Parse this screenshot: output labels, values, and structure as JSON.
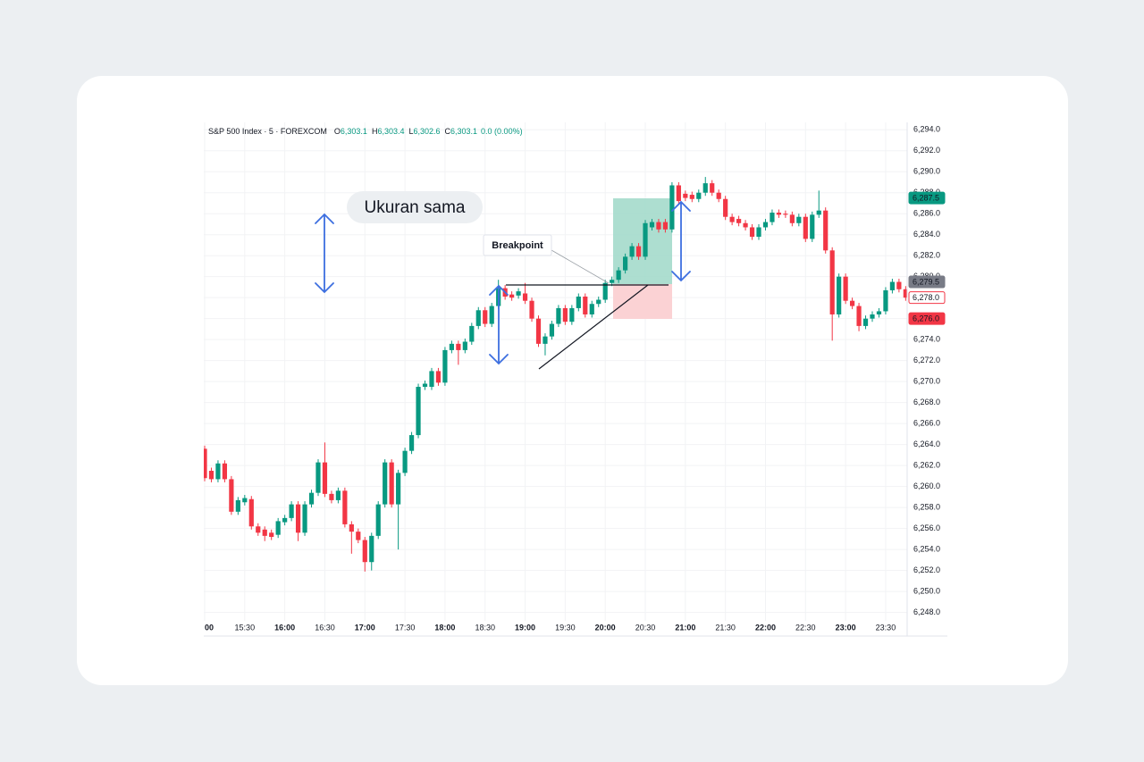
{
  "chart_data": {
    "type": "candlestick",
    "legend": {
      "symbol": "S&P 500 Index · 5 · FOREXCOM",
      "ohlc": [
        {
          "key": "O",
          "value": "6,303.1"
        },
        {
          "key": "H",
          "value": "6,303.4"
        },
        {
          "key": "L",
          "value": "6,302.6"
        },
        {
          "key": "C",
          "value": "6,303.1"
        }
      ],
      "change": "0.0 (0.00%)"
    },
    "annotations": [
      "Ukuran sama",
      "Breakpoint"
    ],
    "up_color": "#089981",
    "down_color": "#f23645",
    "categories": [
      "00",
      null,
      null,
      null,
      null,
      null,
      "15:30",
      null,
      null,
      null,
      null,
      null,
      "16:00",
      null,
      null,
      null,
      null,
      null,
      "16:30",
      null,
      null,
      null,
      null,
      null,
      "17:00",
      null,
      null,
      null,
      null,
      null,
      "17:30",
      null,
      null,
      null,
      null,
      null,
      "18:00",
      null,
      null,
      null,
      null,
      null,
      "18:30",
      null,
      null,
      null,
      null,
      null,
      "19:00",
      null,
      null,
      null,
      null,
      null,
      "19:30",
      null,
      null,
      null,
      null,
      null,
      "20:00",
      null,
      null,
      null,
      null,
      null,
      "20:30",
      null,
      null,
      null,
      null,
      null,
      "21:00",
      null,
      null,
      null,
      null,
      null,
      "21:30",
      null,
      null,
      null,
      null,
      null,
      "22:00",
      null,
      null,
      null,
      null,
      null,
      "22:30",
      null,
      null,
      null,
      null,
      null,
      "23:00",
      null,
      null,
      null,
      null,
      null,
      "23:30",
      null,
      null,
      null
    ],
    "open": [
      6263.6,
      6261.5,
      6260.7,
      6262.2,
      6260.7,
      6257.6,
      6258.5,
      6258.8,
      6256.2,
      6255.9,
      6255.6,
      6255.4,
      6256.6,
      6257.0,
      6258.3,
      6255.6,
      6258.3,
      6259.4,
      6262.3,
      6259.3,
      6258.7,
      6259.6,
      6256.4,
      6255.7,
      6254.9,
      6252.8,
      6255.3,
      6258.3,
      6262.3,
      6258.3,
      6261.3,
      6263.4,
      6264.9,
      6269.5,
      6269.5,
      6271.0,
      6269.9,
      6273.0,
      6273.6,
      6273.0,
      6273.8,
      6275.3,
      6276.8,
      6275.5,
      6277.2,
      6278.9,
      6278.3,
      6278.2,
      6278.4,
      6277.7,
      6276.0,
      6273.6,
      6274.3,
      6275.5,
      6277.0,
      6275.7,
      6277.0,
      6278.1,
      6276.4,
      6277.4,
      6277.8,
      6279.4,
      6279.7,
      6280.6,
      6281.9,
      6282.9,
      6281.9,
      6284.7,
      6285.2,
      6285.2,
      6284.5,
      6288.7,
      6287.9,
      6287.8,
      6287.4,
      6288.0,
      6288.9,
      6288.0,
      6287.4,
      6285.7,
      6285.5,
      6285.1,
      6284.7,
      6283.8,
      6284.7,
      6285.2,
      6286.1,
      6286.0,
      6285.9,
      6285.1,
      6285.7,
      6283.6,
      6285.9,
      6286.3,
      6282.5,
      6276.4,
      6280.0,
      6277.7,
      6277.2,
      6275.3,
      6276.0,
      6276.4,
      6276.7,
      6278.7,
      6279.5,
      6278.8
    ],
    "high": [
      6263.9,
      6261.8,
      6262.5,
      6262.5,
      6261.0,
      6259.0,
      6259.2,
      6259.1,
      6256.5,
      6256.2,
      6255.9,
      6257.0,
      6257.3,
      6258.6,
      6258.6,
      6258.6,
      6259.7,
      6262.6,
      6264.2,
      6259.6,
      6259.9,
      6259.9,
      6256.7,
      6256.0,
      6255.2,
      6255.6,
      6258.6,
      6262.6,
      6262.6,
      6261.6,
      6263.7,
      6265.2,
      6269.8,
      6270.1,
      6271.3,
      6271.3,
      6273.3,
      6273.9,
      6273.9,
      6274.1,
      6275.6,
      6277.1,
      6277.1,
      6277.5,
      6279.7,
      6279.2,
      6278.6,
      6278.9,
      6279.4,
      6278.0,
      6276.3,
      6274.6,
      6275.8,
      6277.3,
      6277.3,
      6277.3,
      6278.4,
      6278.4,
      6277.7,
      6278.1,
      6279.7,
      6280.0,
      6280.9,
      6282.2,
      6283.2,
      6283.2,
      6285.4,
      6285.5,
      6285.5,
      6285.5,
      6289.0,
      6289.0,
      6288.2,
      6288.1,
      6288.3,
      6289.5,
      6289.2,
      6288.3,
      6287.7,
      6286.0,
      6285.8,
      6285.4,
      6285.0,
      6285.0,
      6285.5,
      6286.4,
      6286.4,
      6286.3,
      6286.2,
      6286.0,
      6286.0,
      6286.2,
      6288.2,
      6286.6,
      6282.8,
      6280.3,
      6280.3,
      6278.0,
      6277.5,
      6276.3,
      6276.7,
      6277.0,
      6279.0,
      6279.8,
      6279.8,
      6279.1
    ],
    "low": [
      6260.5,
      6260.4,
      6260.4,
      6260.4,
      6257.3,
      6257.3,
      6258.2,
      6255.9,
      6255.3,
      6254.8,
      6254.9,
      6255.1,
      6256.3,
      6256.7,
      6254.8,
      6255.3,
      6258.0,
      6259.1,
      6259.0,
      6258.4,
      6258.4,
      6256.1,
      6253.6,
      6254.6,
      6251.9,
      6252.0,
      6255.0,
      6258.0,
      6258.0,
      6254.0,
      6261.0,
      6263.1,
      6264.6,
      6269.2,
      6269.2,
      6269.6,
      6269.6,
      6272.7,
      6271.6,
      6272.7,
      6273.5,
      6275.0,
      6275.2,
      6275.2,
      6276.9,
      6277.8,
      6277.7,
      6277.9,
      6277.4,
      6275.7,
      6273.3,
      6272.5,
      6274.0,
      6275.2,
      6275.4,
      6275.4,
      6276.7,
      6276.1,
      6276.1,
      6277.1,
      6277.5,
      6279.1,
      6279.4,
      6280.3,
      6281.6,
      6281.6,
      6281.6,
      6284.4,
      6284.2,
      6284.2,
      6284.2,
      6286.9,
      6287.2,
      6287.1,
      6287.1,
      6287.7,
      6287.7,
      6287.1,
      6285.4,
      6284.9,
      6284.8,
      6284.4,
      6283.5,
      6283.5,
      6284.4,
      6284.9,
      6285.6,
      6285.6,
      6284.8,
      6284.8,
      6283.3,
      6283.3,
      6285.6,
      6282.2,
      6273.9,
      6276.1,
      6277.4,
      6276.9,
      6274.8,
      6275.0,
      6275.7,
      6276.1,
      6276.4,
      6278.4,
      6278.5,
      6277.7
    ],
    "close": [
      6260.8,
      6260.7,
      6262.2,
      6260.7,
      6257.6,
      6258.7,
      6258.9,
      6256.2,
      6255.6,
      6255.3,
      6255.2,
      6256.7,
      6257.0,
      6258.3,
      6255.6,
      6258.3,
      6259.4,
      6262.3,
      6259.3,
      6258.7,
      6259.6,
      6256.4,
      6255.7,
      6254.9,
      6252.8,
      6255.3,
      6258.3,
      6262.3,
      6258.3,
      6261.3,
      6263.4,
      6264.9,
      6269.5,
      6269.8,
      6271.0,
      6269.9,
      6273.0,
      6273.6,
      6273.0,
      6273.8,
      6275.3,
      6276.8,
      6275.5,
      6277.2,
      6278.9,
      6278.1,
      6278.0,
      6278.6,
      6277.7,
      6276.0,
      6273.6,
      6274.3,
      6275.5,
      6277.0,
      6275.7,
      6277.0,
      6278.1,
      6276.4,
      6277.4,
      6277.8,
      6279.4,
      6279.7,
      6280.6,
      6281.9,
      6282.9,
      6281.9,
      6285.1,
      6285.2,
      6284.5,
      6284.5,
      6288.7,
      6287.2,
      6287.5,
      6287.4,
      6288.0,
      6288.9,
      6288.0,
      6287.4,
      6285.7,
      6285.2,
      6285.1,
      6284.7,
      6283.8,
      6284.7,
      6285.2,
      6286.1,
      6285.9,
      6285.9,
      6285.1,
      6285.7,
      6283.6,
      6285.9,
      6286.3,
      6282.5,
      6276.4,
      6280.0,
      6277.7,
      6277.2,
      6275.3,
      6276.0,
      6276.4,
      6276.7,
      6278.7,
      6279.5,
      6278.8,
      6278.0
    ],
    "ylim": [
      6247.2,
      6294.7
    ],
    "yticks": [
      {
        "value": 6248,
        "label": "6,248.0"
      },
      {
        "value": 6250,
        "label": "6,250.0"
      },
      {
        "value": 6252,
        "label": "6,252.0"
      },
      {
        "value": 6254,
        "label": "6,254.0"
      },
      {
        "value": 6256,
        "label": "6,256.0"
      },
      {
        "value": 6258,
        "label": "6,258.0"
      },
      {
        "value": 6260,
        "label": "6,260.0"
      },
      {
        "value": 6262,
        "label": "6,262.0"
      },
      {
        "value": 6264,
        "label": "6,264.0"
      },
      {
        "value": 6266,
        "label": "6,266.0"
      },
      {
        "value": 6268,
        "label": "6,268.0"
      },
      {
        "value": 6270,
        "label": "6,270.0"
      },
      {
        "value": 6272,
        "label": "6,272.0"
      },
      {
        "value": 6274,
        "label": "6,274.0"
      },
      {
        "value": 6276,
        "label": "6,276.0"
      },
      {
        "value": 6278,
        "label": "6,278.0"
      },
      {
        "value": 6280,
        "label": "6,280.0"
      },
      {
        "value": 6282,
        "label": "6,282.0"
      },
      {
        "value": 6284,
        "label": "6,284.0"
      },
      {
        "value": 6286,
        "label": "6,286.0"
      },
      {
        "value": 6288,
        "label": "6,288.0"
      },
      {
        "value": 6290,
        "label": "6,290.0"
      },
      {
        "value": 6292,
        "label": "6,292.0"
      },
      {
        "value": 6294,
        "label": "6,294.0"
      }
    ],
    "grid": true,
    "price_labels": [
      {
        "value": 6287.5,
        "label": "6,287.5",
        "color": "#089981",
        "style": "fill"
      },
      {
        "value": 6279.5,
        "label": "6,279.5",
        "color": "#787b86",
        "style": "fill"
      },
      {
        "value": 6278.0,
        "label": "6,278.0",
        "color": "#f23645",
        "style": "outline"
      },
      {
        "value": 6276.0,
        "label": "6,276.0",
        "color": "#f23645",
        "style": "fill"
      }
    ]
  }
}
